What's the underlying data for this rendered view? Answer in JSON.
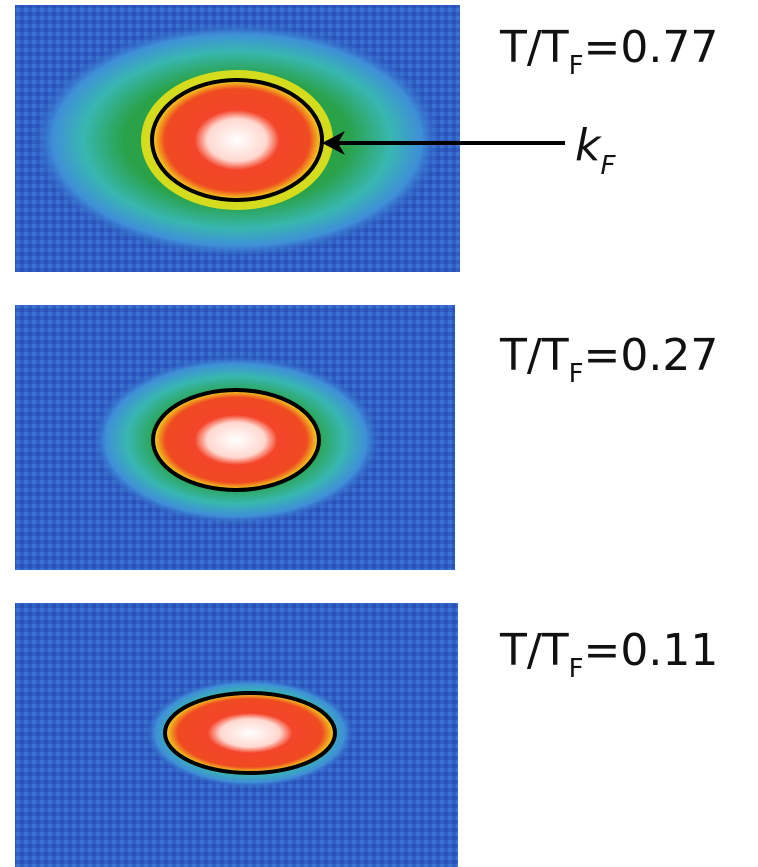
{
  "panels": [
    {
      "label": {
        "prefix": "T/T",
        "subscript": "F",
        "suffix": "=0.77"
      }
    },
    {
      "label": {
        "prefix": "T/T",
        "subscript": "F",
        "suffix": "=0.27"
      }
    },
    {
      "label": {
        "prefix": "T/T",
        "subscript": "F",
        "suffix": "=0.11"
      }
    }
  ],
  "annotation": {
    "symbol": "k",
    "subscript": "F"
  }
}
